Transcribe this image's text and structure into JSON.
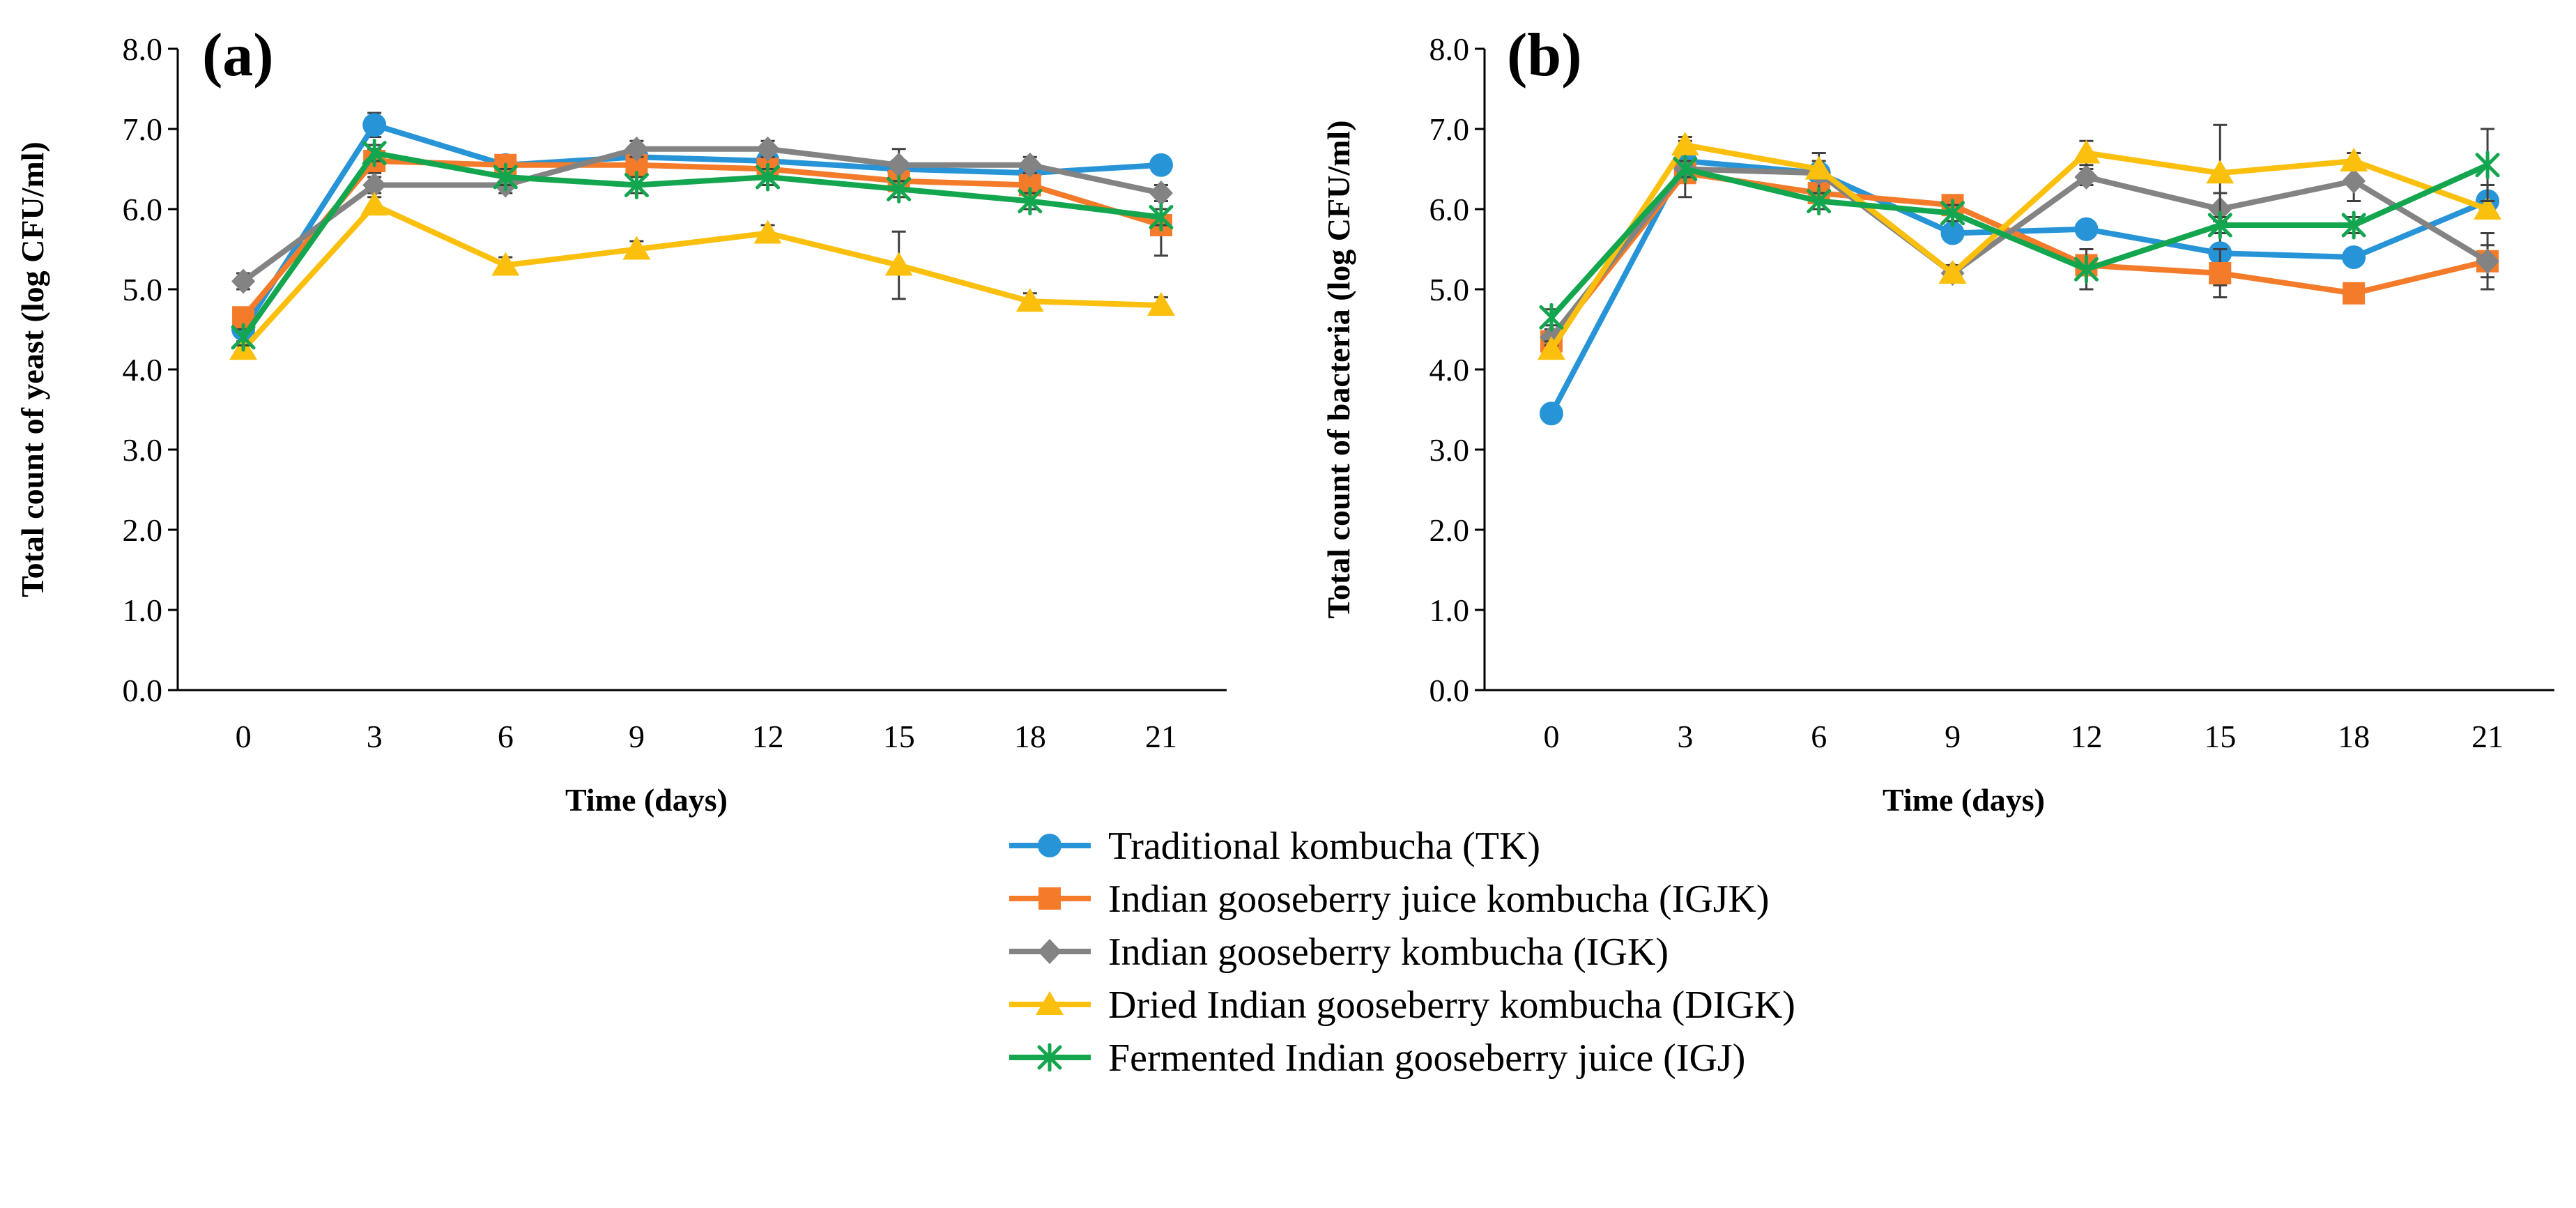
{
  "colors": {
    "TK": "#2694d6",
    "IGJK": "#f47b2a",
    "IGK": "#838383",
    "DIGK": "#fbbf0e",
    "IGJ": "#13a64f",
    "axis": "#000000",
    "errorbar": "#404040"
  },
  "legend": {
    "items": [
      {
        "key": "TK",
        "label": "Traditional kombucha (TK)",
        "marker": "circle"
      },
      {
        "key": "IGJK",
        "label": "Indian gooseberry juice kombucha (IGJK)",
        "marker": "square"
      },
      {
        "key": "IGK",
        "label": "Indian gooseberry kombucha (IGK)",
        "marker": "diamond"
      },
      {
        "key": "DIGK",
        "label": "Dried Indian gooseberry kombucha (DIGK)",
        "marker": "triangle"
      },
      {
        "key": "IGJ",
        "label": "Fermented Indian gooseberry juice (IGJ)",
        "marker": "star"
      }
    ]
  },
  "chart_data": [
    {
      "type": "line",
      "panel_label": "(a)",
      "xlabel": "Time (days)",
      "ylabel": "Total count of yeast (log CFU/ml)",
      "x": [
        0,
        3,
        6,
        9,
        12,
        15,
        18,
        21
      ],
      "x_tick_labels": [
        "0",
        "3",
        "6",
        "9",
        "12",
        "15",
        "18",
        "21"
      ],
      "ylim": [
        0,
        8
      ],
      "y_tick_labels": [
        "0.0",
        "1.0",
        "2.0",
        "3.0",
        "4.0",
        "5.0",
        "6.0",
        "7.0",
        "8.0"
      ],
      "grid": false,
      "series": [
        {
          "name": "TK",
          "values": [
            4.5,
            7.05,
            6.55,
            6.65,
            6.6,
            6.5,
            6.45,
            6.55
          ],
          "errors": [
            0.1,
            0.15,
            0.1,
            0.1,
            0.1,
            0.1,
            0.1,
            0.1
          ]
        },
        {
          "name": "IGJK",
          "values": [
            4.65,
            6.6,
            6.55,
            6.55,
            6.5,
            6.35,
            6.3,
            5.8
          ],
          "errors": [
            0.1,
            0.15,
            0.1,
            0.1,
            0.1,
            0.1,
            0.1,
            0.38
          ]
        },
        {
          "name": "IGK",
          "values": [
            5.1,
            6.3,
            6.3,
            6.75,
            6.75,
            6.55,
            6.55,
            6.2
          ],
          "errors": [
            0.1,
            0.1,
            0.1,
            0.1,
            0.1,
            0.2,
            0.1,
            0.1
          ]
        },
        {
          "name": "DIGK",
          "values": [
            4.25,
            6.05,
            5.3,
            5.5,
            5.7,
            5.3,
            4.85,
            4.8
          ],
          "errors": [
            0.1,
            0.1,
            0.1,
            0.1,
            0.1,
            0.42,
            0.1,
            0.1
          ]
        },
        {
          "name": "IGJ",
          "values": [
            4.4,
            6.7,
            6.4,
            6.3,
            6.4,
            6.25,
            6.1,
            5.9
          ],
          "errors": [
            0.1,
            0.1,
            0.1,
            0.1,
            0.1,
            0.1,
            0.1,
            0.1
          ]
        }
      ]
    },
    {
      "type": "line",
      "panel_label": "(b)",
      "xlabel": "Time (days)",
      "ylabel": "Total count of bacteria (log CFU/ml)",
      "x": [
        0,
        3,
        6,
        9,
        12,
        15,
        18,
        21
      ],
      "x_tick_labels": [
        "0",
        "3",
        "6",
        "9",
        "12",
        "15",
        "18",
        "21"
      ],
      "ylim": [
        0,
        8
      ],
      "y_tick_labels": [
        "0.0",
        "1.0",
        "2.0",
        "3.0",
        "4.0",
        "5.0",
        "6.0",
        "7.0",
        "8.0"
      ],
      "grid": false,
      "series": [
        {
          "name": "TK",
          "values": [
            3.45,
            6.6,
            6.45,
            5.7,
            5.75,
            5.45,
            5.4,
            6.1
          ],
          "errors": [
            0.1,
            0.1,
            0.1,
            0.1,
            0.1,
            0.4,
            0.1,
            0.2
          ]
        },
        {
          "name": "IGJK",
          "values": [
            4.35,
            6.45,
            6.2,
            6.05,
            5.3,
            5.2,
            4.95,
            5.35
          ],
          "errors": [
            0.1,
            0.1,
            0.1,
            0.1,
            0.1,
            0.3,
            0.1,
            0.2
          ]
        },
        {
          "name": "IGK",
          "values": [
            4.4,
            6.5,
            6.45,
            5.2,
            6.4,
            6.0,
            6.35,
            5.35
          ],
          "errors": [
            0.1,
            0.35,
            0.25,
            0.1,
            0.1,
            0.2,
            0.25,
            0.35
          ]
        },
        {
          "name": "DIGK",
          "values": [
            4.25,
            6.8,
            6.5,
            5.2,
            6.7,
            6.45,
            6.6,
            6.0
          ],
          "errors": [
            0.1,
            0.1,
            0.1,
            0.1,
            0.15,
            0.6,
            0.1,
            0.1
          ]
        },
        {
          "name": "IGJ",
          "values": [
            4.65,
            6.5,
            6.1,
            5.95,
            5.25,
            5.8,
            5.8,
            6.55
          ],
          "errors": [
            0.1,
            0.1,
            0.1,
            0.1,
            0.25,
            0.1,
            0.1,
            0.45
          ]
        }
      ]
    }
  ]
}
